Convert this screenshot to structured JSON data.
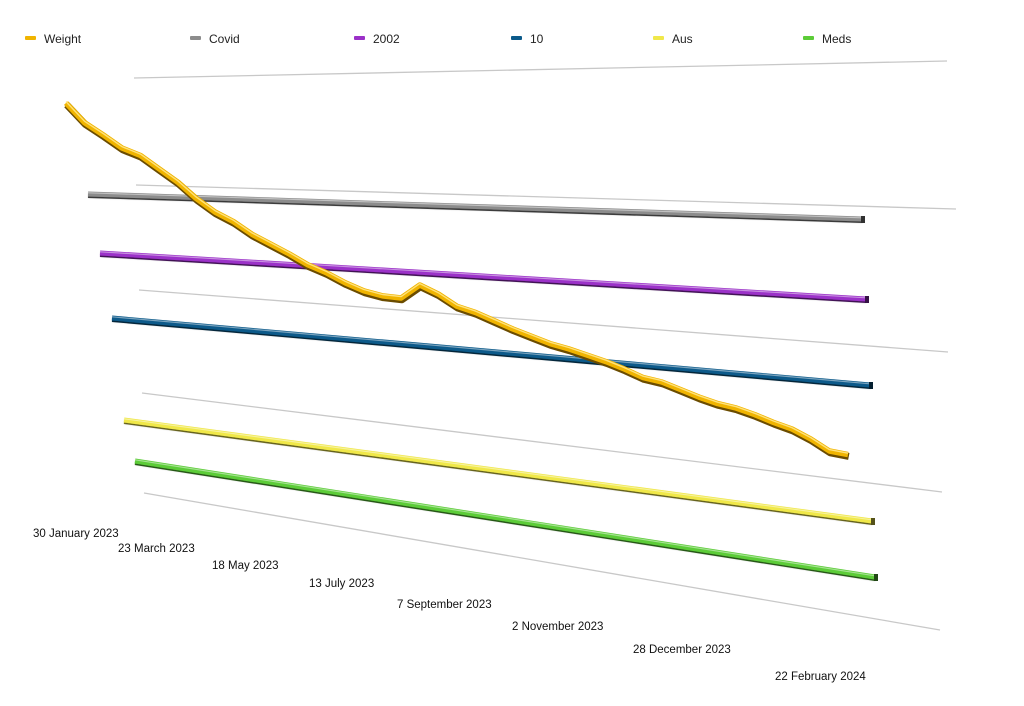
{
  "chart_data": {
    "type": "line",
    "title": "",
    "xlabel": "",
    "ylabel": "",
    "grid": true,
    "legend_position": "top",
    "ticks": [
      "30 January 2023",
      "23 March 2023",
      "18 May 2023",
      "13 July 2023",
      "7 September 2023",
      "2 November 2023",
      "28 December 2023",
      "22 February 2024"
    ],
    "series": [
      {
        "name": "Weight",
        "color": "#f0b400",
        "values": [
          0,
          2,
          3.2,
          4.5,
          5.2,
          6.5,
          7.8,
          9.4,
          10.7,
          11.6,
          12.8,
          13.7,
          14.6,
          15.6,
          16.3,
          17.2,
          17.9,
          18.3,
          18.4,
          17.0,
          17.8,
          18.9,
          19.4,
          20.1,
          20.8,
          21.4,
          22.0,
          22.4,
          22.9,
          23.4,
          24.0,
          24.7,
          25.0,
          25.6,
          26.2,
          26.7,
          27.0,
          27.5,
          28.1,
          28.6,
          29.4,
          30.4,
          30.6
        ]
      },
      {
        "name": "Covid",
        "color": "#8c8c8c",
        "values": [
          0,
          0
        ]
      },
      {
        "name": "2002",
        "color": "#9b30c8",
        "values": [
          0,
          0
        ]
      },
      {
        "name": "10",
        "color": "#0b5a8a",
        "values": [
          0,
          0
        ]
      },
      {
        "name": "Aus",
        "color": "#f0e84a",
        "values": [
          0,
          0
        ]
      },
      {
        "name": "Meds",
        "color": "#5ccc38",
        "values": [
          0,
          0
        ]
      }
    ]
  }
}
